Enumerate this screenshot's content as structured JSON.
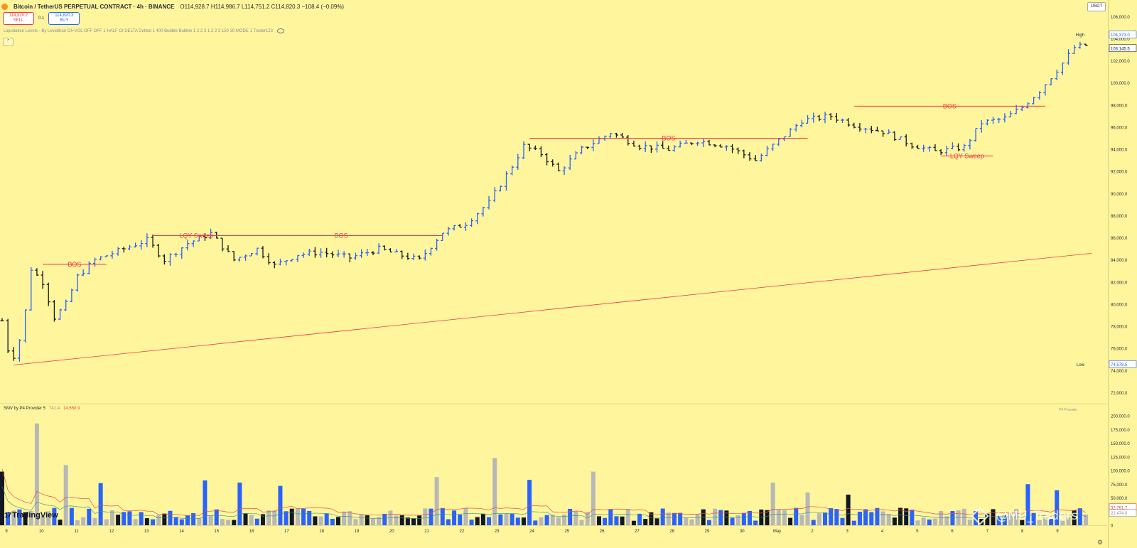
{
  "header": {
    "title": "Bitcoin / TetherUS PERPETUAL CONTRACT · 4h · BINANCE",
    "ohlc": "O114,928.7 H114,986.7 L114,751.2 C114,820.3 −108.4 (−0.09%)"
  },
  "trade": {
    "sell_price": "114,820.2",
    "sell_label": "SELL",
    "spread": "0.1",
    "buy_price": "114,820.3",
    "buy_label": "BUY"
  },
  "indicator": {
    "text": "Liquidation Levels - By Leviathan OI+VOL OFF OFF 1 HALF OI DELTA Dotted 1 400 Bubble Bubble 1 2 2 3 1 2 2 3 150 30 MODE 1 Trader123"
  },
  "collapse_glyph": "⌃",
  "sub_indicator": {
    "name": "SMV by P4 Provider 5",
    "value1": "741.4",
    "value2": "14,660.9"
  },
  "branding": {
    "tradingview": "TradingView",
    "watermark": "@MU_Traders",
    "provider": "P4 Provider"
  },
  "currency": "USDT",
  "settings_glyph": "⚙",
  "colors": {
    "background": "#fef59c",
    "up": "#2962ff",
    "down": "#131722",
    "level": "#f23645",
    "volume_neutral": "#b8b8b8"
  },
  "chart_data": {
    "type": "bar",
    "x_labels": [
      "9",
      "10",
      "11",
      "12",
      "13",
      "14",
      "15",
      "16",
      "17",
      "18",
      "19",
      "20",
      "21",
      "22",
      "23",
      "24",
      "25",
      "26",
      "27",
      "28",
      "29",
      "30",
      "May",
      "2",
      "3",
      "4",
      "5",
      "6",
      "7",
      "8",
      "9"
    ],
    "y_ticks": [
      72000,
      74000,
      76000,
      78000,
      80000,
      82000,
      84000,
      86000,
      88000,
      90000,
      92000,
      94000,
      96000,
      98000,
      100000,
      102000,
      104000,
      106000
    ],
    "y_tick_labels": [
      "72,000.0",
      "74,000.0",
      "76,000.0",
      "78,000.0",
      "80,000.0",
      "82,000.0",
      "84,000.0",
      "86,000.0",
      "88,000.0",
      "90,000.0",
      "92,000.0",
      "94,000.0",
      "96,000.0",
      "98,000.0",
      "100,000.0",
      "102,000.0",
      "104,000.0",
      "106,000.0"
    ],
    "ylim": [
      71000,
      107500
    ],
    "price_badges": [
      {
        "label": "High",
        "value": 104373,
        "text": "104,373.0",
        "color": "#2962ff"
      },
      {
        "label": "",
        "value": 103145.5,
        "text": "103,145.5",
        "color": "#131722"
      },
      {
        "label": "Low",
        "value": 74578.5,
        "text": "74,578.5",
        "color": "#2962ff"
      }
    ],
    "series": [
      {
        "name": "BTCUSDT 4h",
        "anchors": [
          [
            0,
            78500
          ],
          [
            1.5,
            74600
          ],
          [
            3.5,
            77500
          ],
          [
            5,
            83200
          ],
          [
            7,
            82000
          ],
          [
            9,
            78800
          ],
          [
            11,
            80000
          ],
          [
            13,
            82500
          ],
          [
            16,
            84000
          ],
          [
            20,
            84800
          ],
          [
            25,
            85800
          ],
          [
            28,
            84000
          ],
          [
            32,
            85500
          ],
          [
            36,
            86400
          ],
          [
            40,
            84000
          ],
          [
            44,
            85000
          ],
          [
            47,
            83500
          ],
          [
            51,
            84500
          ],
          [
            55,
            84700
          ],
          [
            60,
            84200
          ],
          [
            65,
            85000
          ],
          [
            69,
            84400
          ],
          [
            72,
            84000
          ],
          [
            76,
            86500
          ],
          [
            80,
            87300
          ],
          [
            84,
            89200
          ],
          [
            88,
            92500
          ],
          [
            90,
            94300
          ],
          [
            93,
            93600
          ],
          [
            96,
            92000
          ],
          [
            100,
            94000
          ],
          [
            105,
            95500
          ],
          [
            110,
            94300
          ],
          [
            115,
            94000
          ],
          [
            120,
            94800
          ],
          [
            125,
            94300
          ],
          [
            130,
            93000
          ],
          [
            134,
            94800
          ],
          [
            138,
            96600
          ],
          [
            143,
            97000
          ],
          [
            147,
            96200
          ],
          [
            152,
            95600
          ],
          [
            157,
            94400
          ],
          [
            161,
            93800
          ],
          [
            166,
            94200
          ],
          [
            169,
            96400
          ],
          [
            173,
            96800
          ],
          [
            176,
            97800
          ],
          [
            179,
            99300
          ],
          [
            183,
            101800
          ],
          [
            185,
            103200
          ],
          [
            187,
            103400
          ]
        ]
      }
    ],
    "candles_count": 188,
    "levels": [
      {
        "label": "BOS",
        "price": 83600,
        "x_start": 7,
        "x_end": 18
      },
      {
        "label": "LQY Sweep",
        "price": 86200,
        "x_start": 26,
        "x_end": 41
      },
      {
        "label": "BOS",
        "price": 86200,
        "x_start": 41,
        "x_end": 76
      },
      {
        "label": "BOS",
        "price": 95000,
        "x_start": 91,
        "x_end": 139
      },
      {
        "label": "BOS",
        "price": 97900,
        "x_start": 147,
        "x_end": 180
      },
      {
        "label": "LQY Sweep",
        "price": 93400,
        "x_start": 162,
        "x_end": 171
      }
    ],
    "trendline": {
      "x_start": 2,
      "price_start": 74500,
      "x_end": 188,
      "price_end": 84600
    },
    "volume": {
      "ylim": [
        0,
        200000
      ],
      "y_ticks": [
        0,
        25000,
        50000,
        75000,
        100000,
        125000,
        150000,
        175000,
        200000
      ],
      "y_tick_labels": [
        "0",
        "25,000.0",
        "50,000.0",
        "75,000.0",
        "100,000.0",
        "125,000.0",
        "150,000.0",
        "175,000.0",
        "200,000.0"
      ],
      "badges": [
        {
          "value": 32791.7,
          "text": "32,791.7",
          "color": "#f23645"
        },
        {
          "value": 22474,
          "text": "22,474.0",
          "color": "#8c8c8c"
        }
      ],
      "spikes": [
        [
          0,
          98000
        ],
        [
          6,
          186000
        ],
        [
          11,
          110000
        ],
        [
          17,
          77000
        ],
        [
          35,
          82000
        ],
        [
          41,
          78000
        ],
        [
          48,
          72000
        ],
        [
          75,
          88000
        ],
        [
          85,
          123000
        ],
        [
          91,
          83000
        ],
        [
          102,
          98000
        ],
        [
          133,
          78000
        ],
        [
          139,
          60000
        ],
        [
          146,
          56000
        ],
        [
          177,
          75000
        ],
        [
          182,
          64000
        ]
      ]
    }
  }
}
